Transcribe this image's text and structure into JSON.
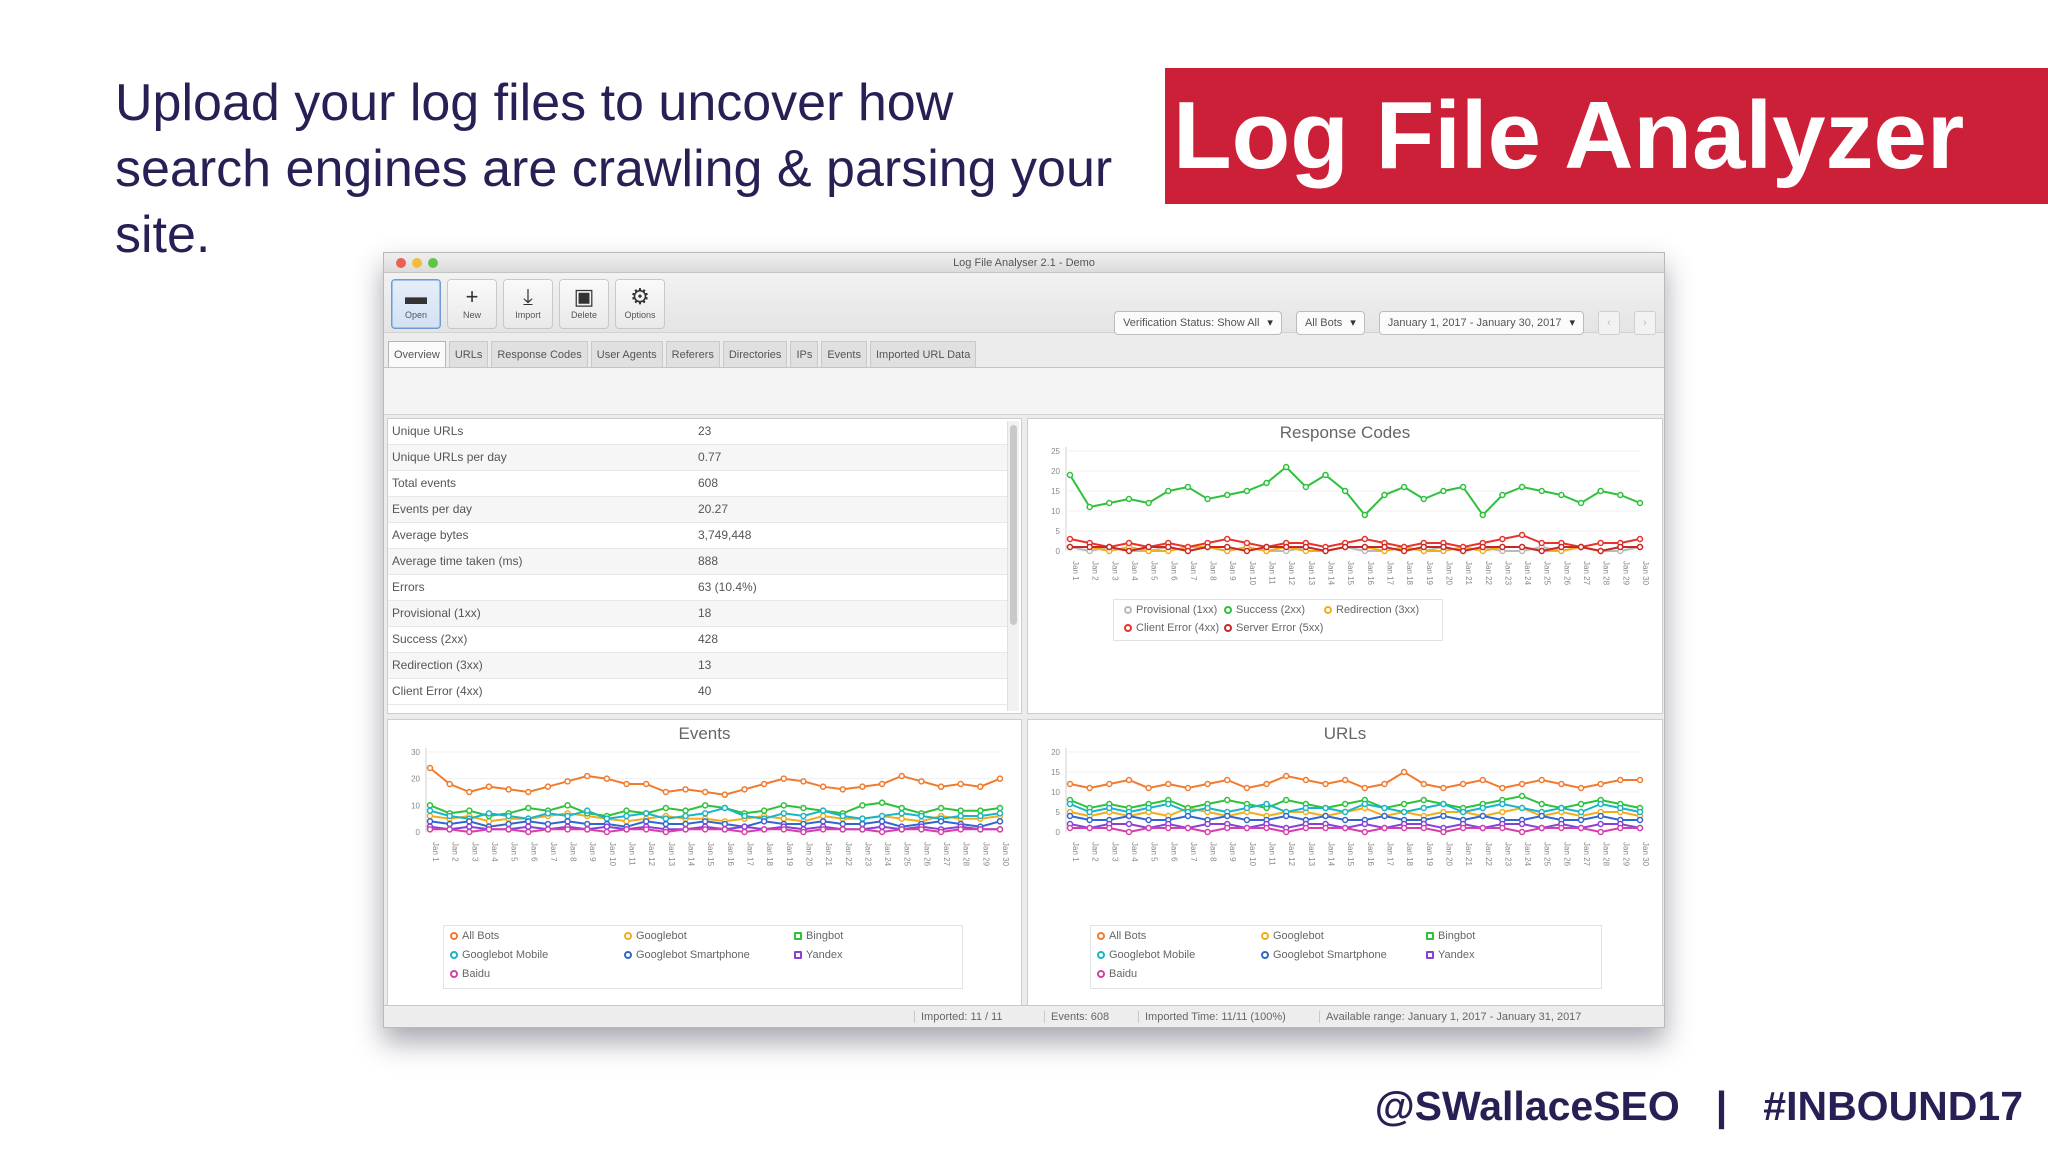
{
  "slide": {
    "intro_text": "Upload your log files to uncover how search engines are crawling & parsing your site.",
    "title": "Log File Analyzer",
    "footer_handle": "@SWallaceSEO",
    "footer_separator": "|",
    "footer_hashtag": "#INBOUND17"
  },
  "app": {
    "window_title": "Log File Analyser 2.1 - Demo",
    "toolbar": [
      {
        "label": "Open",
        "icon": "folder-open-icon",
        "glyph": "▬",
        "active": true
      },
      {
        "label": "New",
        "icon": "plus-icon",
        "glyph": "+",
        "active": false
      },
      {
        "label": "Import",
        "icon": "download-icon",
        "glyph": "⤓",
        "active": false
      },
      {
        "label": "Delete",
        "icon": "trash-icon",
        "glyph": "▣",
        "active": false
      },
      {
        "label": "Options",
        "icon": "gear-icon",
        "glyph": "⚙",
        "active": false
      }
    ],
    "filters": {
      "bot_filter": "Verification Status: Show All",
      "bot_type": "All Bots",
      "date_range": "January 1, 2017 - January 30, 2017",
      "prev_label": "‹",
      "next_label": "›"
    },
    "tabs": [
      "Overview",
      "URLs",
      "Response Codes",
      "User Agents",
      "Referers",
      "Directories",
      "IPs",
      "Events",
      "Imported URL Data"
    ],
    "stats": [
      {
        "label": "Unique URLs",
        "value": "23"
      },
      {
        "label": "Unique URLs per day",
        "value": "0.77"
      },
      {
        "label": "Total events",
        "value": "608"
      },
      {
        "label": "Events per day",
        "value": "20.27"
      },
      {
        "label": "Average bytes",
        "value": "3,749,448"
      },
      {
        "label": "Average time taken (ms)",
        "value": "888"
      },
      {
        "label": "Errors",
        "value": "63 (10.4%)"
      },
      {
        "label": "Provisional (1xx)",
        "value": "18"
      },
      {
        "label": "Success (2xx)",
        "value": "428"
      },
      {
        "label": "Redirection (3xx)",
        "value": "13"
      },
      {
        "label": "Client Error (4xx)",
        "value": "40"
      }
    ],
    "status_bar": [
      "Imported: 11 / 11",
      "Events: 608",
      "Imported Time: 11/11 (100%)",
      "Available range: January 1, 2017 - January 31, 2017"
    ],
    "colors": {
      "accent_banner": "#cc1f38",
      "text_dark": "#2a1f55",
      "green": "#2fc13c",
      "red": "#e8322a",
      "orange": "#f07b2e",
      "gold": "#f0ae1e",
      "blue": "#3366cc",
      "cyan": "#18b5c8",
      "purple": "#8a3fd6",
      "magenta": "#d63fa8",
      "grey": "#b9b9b9"
    }
  },
  "chart_data": [
    {
      "type": "line",
      "title": "Response Codes",
      "x": [
        "Jan 1",
        "Jan 2",
        "Jan 3",
        "Jan 4",
        "Jan 5",
        "Jan 6",
        "Jan 7",
        "Jan 8",
        "Jan 9",
        "Jan 10",
        "Jan 11",
        "Jan 12",
        "Jan 13",
        "Jan 14",
        "Jan 15",
        "Jan 16",
        "Jan 17",
        "Jan 18",
        "Jan 19",
        "Jan 20",
        "Jan 21",
        "Jan 22",
        "Jan 23",
        "Jan 24",
        "Jan 25",
        "Jan 26",
        "Jan 27",
        "Jan 28",
        "Jan 29",
        "Jan 30"
      ],
      "ylim": [
        0,
        25
      ],
      "yticks": [
        0,
        5,
        10,
        15,
        20,
        25
      ],
      "series": [
        {
          "name": "Provisional (1xx)",
          "color": "#b9b9b9",
          "values": [
            1,
            0,
            1,
            0,
            0,
            1,
            0,
            1,
            0,
            1,
            0,
            0,
            1,
            0,
            1,
            0,
            0,
            1,
            0,
            1,
            0,
            1,
            0,
            0,
            1,
            0,
            1,
            0,
            0,
            1
          ]
        },
        {
          "name": "Success (2xx)",
          "color": "#2fc13c",
          "values": [
            19,
            11,
            12,
            13,
            12,
            15,
            16,
            13,
            14,
            15,
            17,
            21,
            16,
            19,
            15,
            9,
            14,
            16,
            13,
            15,
            16,
            9,
            14,
            16,
            15,
            14,
            12,
            15,
            14,
            12
          ]
        },
        {
          "name": "Redirection (3xx)",
          "color": "#f0ae1e",
          "values": [
            1,
            1,
            0,
            1,
            0,
            0,
            1,
            1,
            0,
            1,
            0,
            1,
            0,
            0,
            1,
            1,
            0,
            1,
            0,
            0,
            1,
            0,
            1,
            1,
            0,
            0,
            1,
            0,
            1,
            1
          ]
        },
        {
          "name": "Client Error (4xx)",
          "color": "#e8322a",
          "values": [
            3,
            2,
            1,
            2,
            1,
            2,
            1,
            2,
            3,
            2,
            1,
            2,
            2,
            1,
            2,
            3,
            2,
            1,
            2,
            2,
            1,
            2,
            3,
            4,
            2,
            2,
            1,
            2,
            2,
            3
          ]
        },
        {
          "name": "Server Error (5xx)",
          "color": "#c62828",
          "values": [
            1,
            1,
            1,
            0,
            1,
            1,
            0,
            1,
            1,
            0,
            1,
            1,
            1,
            0,
            1,
            1,
            1,
            0,
            1,
            1,
            0,
            1,
            1,
            1,
            0,
            1,
            1,
            0,
            1,
            1
          ]
        }
      ]
    },
    {
      "type": "line",
      "title": "Events",
      "x": [
        "Jan 1",
        "Jan 2",
        "Jan 3",
        "Jan 4",
        "Jan 5",
        "Jan 6",
        "Jan 7",
        "Jan 8",
        "Jan 9",
        "Jan 10",
        "Jan 11",
        "Jan 12",
        "Jan 13",
        "Jan 14",
        "Jan 15",
        "Jan 16",
        "Jan 17",
        "Jan 18",
        "Jan 19",
        "Jan 20",
        "Jan 21",
        "Jan 22",
        "Jan 23",
        "Jan 24",
        "Jan 25",
        "Jan 26",
        "Jan 27",
        "Jan 28",
        "Jan 29",
        "Jan 30"
      ],
      "ylim": [
        0,
        30
      ],
      "yticks": [
        0,
        10,
        20,
        30
      ],
      "series": [
        {
          "name": "All Bots",
          "color": "#f07b2e",
          "values": [
            24,
            18,
            15,
            17,
            16,
            15,
            17,
            19,
            21,
            20,
            18,
            18,
            15,
            16,
            15,
            14,
            16,
            18,
            20,
            19,
            17,
            16,
            17,
            18,
            21,
            19,
            17,
            18,
            17,
            20
          ]
        },
        {
          "name": "Googlebot",
          "color": "#f0ae1e",
          "values": [
            6,
            5,
            6,
            4,
            5,
            5,
            6,
            7,
            6,
            5,
            4,
            5,
            6,
            5,
            5,
            4,
            5,
            6,
            5,
            4,
            6,
            5,
            5,
            6,
            5,
            4,
            6,
            5,
            5,
            6
          ]
        },
        {
          "name": "Bingbot",
          "color": "#2fc13c",
          "values": [
            10,
            7,
            8,
            6,
            7,
            9,
            8,
            10,
            7,
            6,
            8,
            7,
            9,
            8,
            10,
            9,
            7,
            8,
            10,
            9,
            8,
            7,
            10,
            11,
            9,
            7,
            9,
            8,
            8,
            9
          ]
        },
        {
          "name": "Googlebot Mobile",
          "color": "#18b5c8",
          "values": [
            8,
            6,
            5,
            7,
            6,
            5,
            7,
            6,
            8,
            5,
            6,
            7,
            5,
            6,
            7,
            9,
            6,
            5,
            7,
            6,
            8,
            6,
            5,
            6,
            7,
            6,
            5,
            6,
            6,
            7
          ]
        },
        {
          "name": "Googlebot Smartphone",
          "color": "#3366cc",
          "values": [
            4,
            3,
            4,
            2,
            3,
            4,
            3,
            4,
            3,
            3,
            2,
            4,
            3,
            3,
            4,
            3,
            2,
            4,
            3,
            3,
            4,
            3,
            3,
            4,
            2,
            3,
            4,
            3,
            2,
            4
          ]
        },
        {
          "name": "Yandex",
          "color": "#8a3fd6",
          "values": [
            2,
            1,
            2,
            1,
            1,
            2,
            1,
            2,
            1,
            2,
            1,
            2,
            1,
            1,
            2,
            1,
            2,
            1,
            2,
            1,
            2,
            1,
            1,
            2,
            1,
            2,
            1,
            2,
            1,
            1
          ]
        },
        {
          "name": "Baidu",
          "color": "#d63fa8",
          "values": [
            1,
            1,
            0,
            1,
            1,
            0,
            1,
            1,
            1,
            0,
            1,
            1,
            0,
            1,
            1,
            1,
            0,
            1,
            1,
            0,
            1,
            1,
            1,
            0,
            1,
            1,
            0,
            1,
            1,
            1
          ]
        }
      ]
    },
    {
      "type": "line",
      "title": "URLs",
      "x": [
        "Jan 1",
        "Jan 2",
        "Jan 3",
        "Jan 4",
        "Jan 5",
        "Jan 6",
        "Jan 7",
        "Jan 8",
        "Jan 9",
        "Jan 10",
        "Jan 11",
        "Jan 12",
        "Jan 13",
        "Jan 14",
        "Jan 15",
        "Jan 16",
        "Jan 17",
        "Jan 18",
        "Jan 19",
        "Jan 20",
        "Jan 21",
        "Jan 22",
        "Jan 23",
        "Jan 24",
        "Jan 25",
        "Jan 26",
        "Jan 27",
        "Jan 28",
        "Jan 29",
        "Jan 30"
      ],
      "ylim": [
        0,
        20
      ],
      "yticks": [
        0,
        5,
        10,
        15,
        20
      ],
      "series": [
        {
          "name": "All Bots",
          "color": "#f07b2e",
          "values": [
            12,
            11,
            12,
            13,
            11,
            12,
            11,
            12,
            13,
            11,
            12,
            14,
            13,
            12,
            13,
            11,
            12,
            15,
            12,
            11,
            12,
            13,
            11,
            12,
            13,
            12,
            11,
            12,
            13,
            13
          ]
        },
        {
          "name": "Googlebot",
          "color": "#f0ae1e",
          "values": [
            5,
            4,
            5,
            4,
            5,
            4,
            6,
            5,
            4,
            5,
            4,
            5,
            5,
            4,
            5,
            6,
            4,
            5,
            4,
            5,
            5,
            4,
            5,
            6,
            4,
            5,
            4,
            5,
            5,
            4
          ]
        },
        {
          "name": "Bingbot",
          "color": "#2fc13c",
          "values": [
            8,
            6,
            7,
            6,
            7,
            8,
            6,
            7,
            8,
            7,
            6,
            8,
            7,
            6,
            7,
            8,
            6,
            7,
            8,
            7,
            6,
            7,
            8,
            9,
            7,
            6,
            7,
            8,
            7,
            6
          ]
        },
        {
          "name": "Googlebot Mobile",
          "color": "#18b5c8",
          "values": [
            7,
            5,
            6,
            5,
            6,
            7,
            5,
            6,
            5,
            6,
            7,
            5,
            6,
            6,
            5,
            7,
            6,
            5,
            6,
            7,
            5,
            6,
            7,
            6,
            5,
            6,
            5,
            7,
            6,
            5
          ]
        },
        {
          "name": "Googlebot Smartphone",
          "color": "#3366cc",
          "values": [
            4,
            3,
            3,
            4,
            3,
            3,
            4,
            3,
            4,
            3,
            3,
            4,
            3,
            4,
            3,
            3,
            4,
            3,
            3,
            4,
            3,
            4,
            3,
            3,
            4,
            3,
            3,
            4,
            3,
            3
          ]
        },
        {
          "name": "Yandex",
          "color": "#8a3fd6",
          "values": [
            2,
            1,
            2,
            2,
            1,
            2,
            1,
            2,
            2,
            1,
            2,
            1,
            2,
            2,
            1,
            2,
            1,
            2,
            2,
            1,
            2,
            1,
            2,
            2,
            1,
            2,
            1,
            2,
            2,
            1
          ]
        },
        {
          "name": "Baidu",
          "color": "#d63fa8",
          "values": [
            1,
            1,
            1,
            0,
            1,
            1,
            1,
            0,
            1,
            1,
            1,
            0,
            1,
            1,
            1,
            0,
            1,
            1,
            1,
            0,
            1,
            1,
            1,
            0,
            1,
            1,
            1,
            0,
            1,
            1
          ]
        }
      ]
    }
  ]
}
